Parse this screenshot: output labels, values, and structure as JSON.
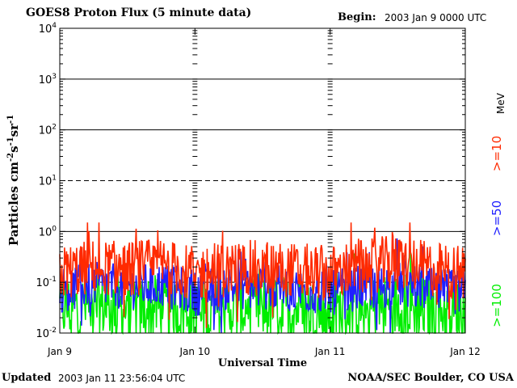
{
  "header": {
    "title": "GOES8 Proton Flux (5 minute data)",
    "begin_label": "Begin:",
    "begin_value": "2003 Jan 9 0000 UTC"
  },
  "footer": {
    "updated_label": "Updated",
    "updated_value": "2003 Jan 11 23:56:04 UTC",
    "credit": "NOAA/SEC Boulder, CO USA"
  },
  "chart_data": {
    "type": "line",
    "title": "GOES8 Proton Flux (5 minute data)",
    "xlabel": "Universal Time",
    "ylabel": "Particles cm⁻²s⁻¹sr⁻¹",
    "y_scale": "log",
    "ylim": [
      0.01,
      10000
    ],
    "yticks": [
      {
        "base": "10",
        "exp": "-2"
      },
      {
        "base": "10",
        "exp": "-1"
      },
      {
        "base": "10",
        "exp": "0"
      },
      {
        "base": "10",
        "exp": "1"
      },
      {
        "base": "10",
        "exp": "2"
      },
      {
        "base": "10",
        "exp": "3"
      },
      {
        "base": "10",
        "exp": "4"
      }
    ],
    "x_days": 3,
    "xticks": [
      "Jan 9",
      "Jan 10",
      "Jan 11",
      "Jan 12"
    ],
    "dashed_threshold_lines": [
      10,
      0.1
    ],
    "unit_label": "MeV",
    "series": [
      {
        "name": ">=10",
        "color": "#ff2a00",
        "x": [
          0,
          0.25,
          0.5,
          0.75,
          1.0,
          1.25,
          1.5,
          1.75,
          2.0,
          2.25,
          2.5,
          2.75,
          3.0
        ],
        "values": [
          0.15,
          0.2,
          0.18,
          0.22,
          0.14,
          0.18,
          0.2,
          0.17,
          0.15,
          0.2,
          0.25,
          0.18,
          0.15
        ]
      },
      {
        "name": ">=50",
        "color": "#2020ff",
        "x": [
          0,
          0.25,
          0.5,
          0.75,
          1.0,
          1.25,
          1.5,
          1.75,
          2.0,
          2.25,
          2.5,
          2.75,
          3.0
        ],
        "values": [
          0.07,
          0.09,
          0.08,
          0.09,
          0.06,
          0.08,
          0.08,
          0.07,
          0.06,
          0.08,
          0.09,
          0.07,
          0.06
        ]
      },
      {
        "name": ">=100",
        "color": "#00ee00",
        "x": [
          0,
          0.25,
          0.5,
          0.75,
          1.0,
          1.25,
          1.5,
          1.75,
          2.0,
          2.25,
          2.5,
          2.75,
          3.0
        ],
        "values": [
          0.03,
          0.035,
          0.03,
          0.032,
          0.025,
          0.03,
          0.032,
          0.03,
          0.025,
          0.03,
          0.035,
          0.03,
          0.025
        ]
      }
    ]
  }
}
